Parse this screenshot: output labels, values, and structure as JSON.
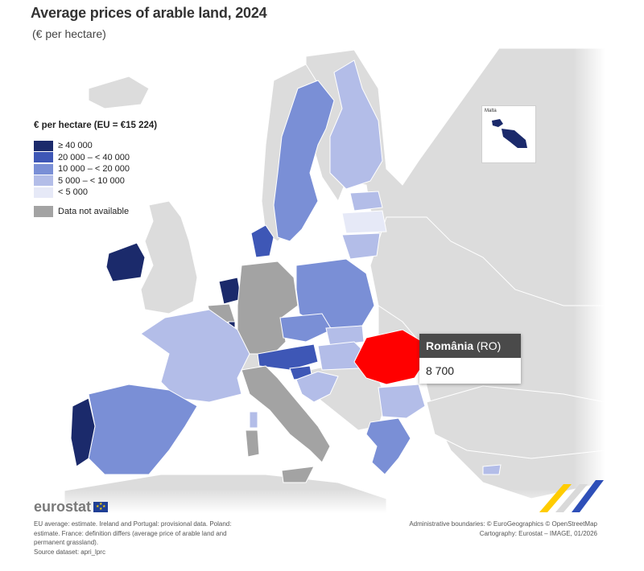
{
  "title": "Average prices of arable land, 2024",
  "subtitle": "(€ per hectare)",
  "legend": {
    "title": "€ per hectare (EU = €15 224)",
    "classes": [
      {
        "label": "≥ 40 000",
        "color": "#1b2a6b"
      },
      {
        "label": "20 000 – < 40 000",
        "color": "#3e57b6"
      },
      {
        "label": "10 000 – < 20 000",
        "color": "#7a8fd6"
      },
      {
        "label": "5 000 – < 10 000",
        "color": "#b3bde8"
      },
      {
        "label": "< 5 000",
        "color": "#e6e9f7"
      }
    ],
    "not_available": {
      "label": "Data not available",
      "color": "#a3a3a3"
    }
  },
  "inset": {
    "label": "Malta"
  },
  "tooltip": {
    "country": "România",
    "code": "(RO)",
    "value": "8 700"
  },
  "highlight_color": "#ff0000",
  "logo": {
    "text": "eurostat"
  },
  "footnotes": [
    "EU average: estimate. Ireland and Portugal: provisional data. Poland:",
    "estimate. France: definition differs (average price of arable land and",
    "permanent grassland).",
    "Source dataset: apri_lprc"
  ],
  "credits": [
    "Administrative boundaries: © EuroGeographics © OpenStreetMap",
    "Cartography: Eurostat – IMAGE, 01/2026"
  ]
}
